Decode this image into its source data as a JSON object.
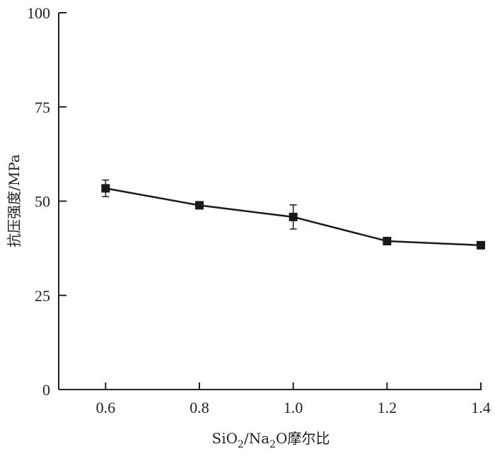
{
  "chart_data": {
    "type": "line",
    "xlabel": {
      "prefix": "SiO",
      "sub1": "2",
      "mid": "/Na",
      "sub2": "2",
      "suffix": "O摩尔比"
    },
    "ylabel": "抗压强度/MPa",
    "xlim": [
      0.5,
      1.4
    ],
    "ylim": [
      0,
      100
    ],
    "x_ticks": [
      {
        "value": 0.6,
        "label": "0.6"
      },
      {
        "value": 0.8,
        "label": "0.8"
      },
      {
        "value": 1.0,
        "label": "1.0"
      },
      {
        "value": 1.2,
        "label": "1.2"
      },
      {
        "value": 1.4,
        "label": "1.4"
      }
    ],
    "y_ticks": [
      {
        "value": 0,
        "label": "0"
      },
      {
        "value": 25,
        "label": "25"
      },
      {
        "value": 50,
        "label": "50"
      },
      {
        "value": 75,
        "label": "75"
      },
      {
        "value": 100,
        "label": "100"
      }
    ],
    "series": [
      {
        "marker": "square",
        "color": "#1a1a1a",
        "x": [
          0.6,
          0.8,
          1.0,
          1.2,
          1.4
        ],
        "y": [
          53.4,
          48.9,
          45.8,
          39.4,
          38.3
        ],
        "error": [
          2.2,
          0.6,
          3.2,
          0.6,
          0.9
        ]
      }
    ],
    "grid": false,
    "legend": false
  }
}
